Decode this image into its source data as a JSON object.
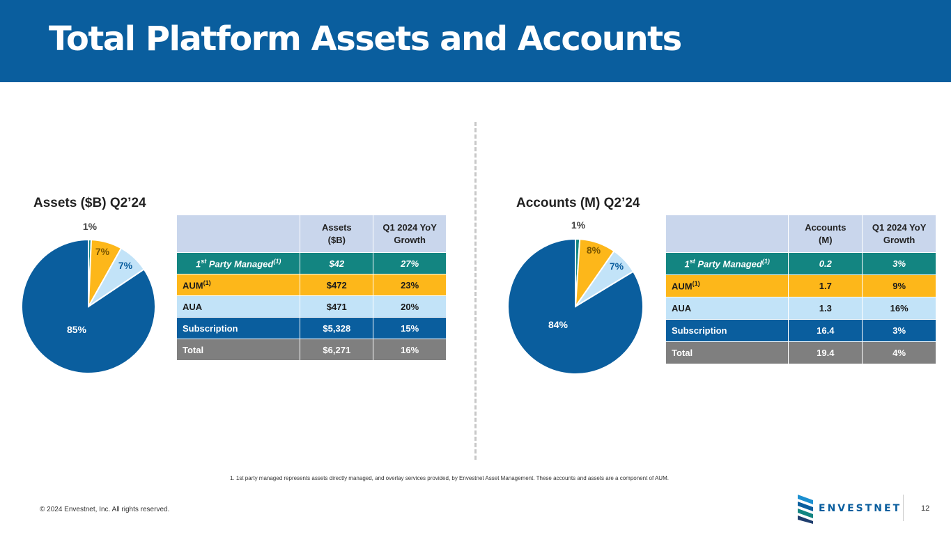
{
  "title": "Total Platform Assets and Accounts",
  "colors": {
    "header": "#0a5e9e",
    "first_party": "#138581",
    "aum": "#fdb71a",
    "aua": "#c2e3f8",
    "subscription": "#0a5e9e",
    "total": "#7f7f7f",
    "table_header": "#c9d6ec"
  },
  "chart_data": [
    {
      "type": "pie",
      "title": "Assets ($B) Q2’24",
      "series": [
        {
          "name": "1st Party Managed",
          "value": 42,
          "label": "1%"
        },
        {
          "name": "AUM",
          "value": 472,
          "label": "7%"
        },
        {
          "name": "AUA",
          "value": 471,
          "label": "7%"
        },
        {
          "name": "Subscription",
          "value": 5328,
          "label": "85%"
        }
      ]
    },
    {
      "type": "pie",
      "title": "Accounts (M) Q2’24",
      "series": [
        {
          "name": "1st Party Managed",
          "value": 0.2,
          "label": "1%"
        },
        {
          "name": "AUM",
          "value": 1.7,
          "label": "8%"
        },
        {
          "name": "AUA",
          "value": 1.3,
          "label": "7%"
        },
        {
          "name": "Subscription",
          "value": 16.4,
          "label": "84%"
        }
      ]
    }
  ],
  "assets_table": {
    "col1_header": "Assets ($B)",
    "col2_header": "Q1 2024 YoY Growth",
    "rows": [
      {
        "label": "1st Party Managed",
        "value": "$42",
        "growth": "27%"
      },
      {
        "label": "AUM",
        "value": "$472",
        "growth": "23%"
      },
      {
        "label": "AUA",
        "value": "$471",
        "growth": "20%"
      },
      {
        "label": "Subscription",
        "value": "$5,328",
        "growth": "15%"
      },
      {
        "label": "Total",
        "value": "$6,271",
        "growth": "16%"
      }
    ]
  },
  "accounts_table": {
    "col1_header": "Accounts (M)",
    "col2_header": "Q1 2024 YoY Growth",
    "rows": [
      {
        "label": "1st Party Managed",
        "value": "0.2",
        "growth": "3%"
      },
      {
        "label": "AUM",
        "value": "1.7",
        "growth": "9%"
      },
      {
        "label": "AUA",
        "value": "1.3",
        "growth": "16%"
      },
      {
        "label": "Subscription",
        "value": "16.4",
        "growth": "3%"
      },
      {
        "label": "Total",
        "value": "19.4",
        "growth": "4%"
      }
    ]
  },
  "label_parts": {
    "first_prefix": "1",
    "first_sup": "st",
    "first_rest": " Party Managed",
    "footnote_ref": "(1)",
    "aum": "AUM"
  },
  "footnote": "1. 1st party managed represents assets directly managed, and overlay services provided, by Envestnet Asset Management.  These accounts and assets are a component of AUM.",
  "copyright": "© 2024 Envestnet, Inc. All rights reserved.",
  "logo_text": "ENVESTNET",
  "page_number": "12"
}
